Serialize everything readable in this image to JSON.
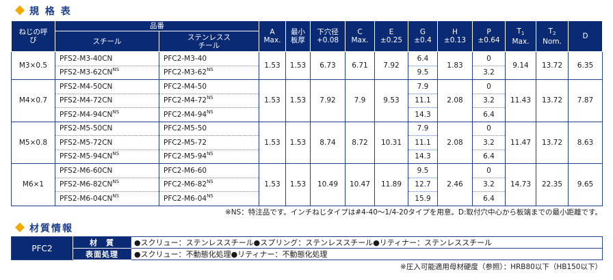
{
  "spec_title": "規 格 表",
  "headers": {
    "thread": "ねじの呼び",
    "part_number": "品番",
    "steel": "スチール",
    "stainless": "ステンレススチール",
    "a": "A",
    "a_sub": "Max.",
    "min_thickness": "最小板厚",
    "pilot_hole": "下穴径",
    "pilot_hole_tol": "+0.08",
    "c": "C",
    "c_sub": "Max.",
    "e": "E",
    "e_tol": "±0.25",
    "g": "G",
    "g_tol": "±0.4",
    "h": "H",
    "h_tol": "±0.13",
    "p": "P",
    "p_tol": "±0.64",
    "t1": "T",
    "t1_index": "1",
    "t1_sub": "Max.",
    "t2": "T",
    "t2_index": "2",
    "t2_sub": "Nom.",
    "d": "D"
  },
  "ns_mark": "NS",
  "groups": [
    {
      "thread": "M3×0.5",
      "a": "1.53",
      "min_thickness": "1.53",
      "pilot_hole": "6.73",
      "c": "6.71",
      "e": "7.92",
      "h": "1.83",
      "t1": "9.14",
      "t2": "13.72",
      "d": "6.35",
      "rows": [
        {
          "steel": "PFS2-M3-40CN",
          "steel_ns": false,
          "stainless": "PFC2-M3-40",
          "stainless_ns": false,
          "g": "6.4",
          "p": "0"
        },
        {
          "steel": "PFS2-M3-62CN",
          "steel_ns": true,
          "stainless": "PFC2-M3-62",
          "stainless_ns": true,
          "g": "9.5",
          "p": "3.2"
        }
      ]
    },
    {
      "thread": "M4×0.7",
      "a": "1.53",
      "min_thickness": "1.53",
      "pilot_hole": "7.92",
      "c": "7.9",
      "e": "9.53",
      "h": "2.08",
      "t1": "11.43",
      "t2": "13.72",
      "d": "7.87",
      "rows": [
        {
          "steel": "PFS2-M4-50CN",
          "steel_ns": false,
          "stainless": "PFC2-M4-50",
          "stainless_ns": false,
          "g": "7.9",
          "p": "0"
        },
        {
          "steel": "PFS2-M4-72CN",
          "steel_ns": false,
          "stainless": "PFC2-M4-72",
          "stainless_ns": true,
          "g": "11.1",
          "p": "3.2"
        },
        {
          "steel": "PFS2-M4-94CN",
          "steel_ns": true,
          "stainless": "PFC2-M4-94",
          "stainless_ns": true,
          "g": "14.3",
          "p": "6.4"
        }
      ]
    },
    {
      "thread": "M5×0.8",
      "a": "1.53",
      "min_thickness": "1.53",
      "pilot_hole": "8.74",
      "c": "8.72",
      "e": "10.31",
      "h": "2.08",
      "t1": "11.47",
      "t2": "13.72",
      "d": "8.63",
      "rows": [
        {
          "steel": "PFS2-M5-50CN",
          "steel_ns": false,
          "stainless": "PFC2-M5-50",
          "stainless_ns": false,
          "g": "7.9",
          "p": "0"
        },
        {
          "steel": "PFS2-M5-72CN",
          "steel_ns": false,
          "stainless": "PFC2-M5-72",
          "stainless_ns": false,
          "g": "11.1",
          "p": "3.2"
        },
        {
          "steel": "PFS2-M5-94CN",
          "steel_ns": true,
          "stainless": "PFC2-M5-94",
          "stainless_ns": true,
          "g": "14.3",
          "p": "6.4"
        }
      ]
    },
    {
      "thread": "M6×1",
      "a": "1.53",
      "min_thickness": "1.53",
      "pilot_hole": "10.49",
      "c": "10.47",
      "e": "11.89",
      "h": "2.46",
      "t1": "14.73",
      "t2": "22.35",
      "d": "9.65",
      "rows": [
        {
          "steel": "PFS2-M6-60CN",
          "steel_ns": false,
          "stainless": "PFC2-M6-60",
          "stainless_ns": false,
          "g": "9.5",
          "p": "0"
        },
        {
          "steel": "PFS2-M6-82CN",
          "steel_ns": true,
          "stainless": "PFC2-M6-82",
          "stainless_ns": true,
          "g": "12.7",
          "p": "3.2"
        },
        {
          "steel": "PFS2-M6-04CN",
          "steel_ns": true,
          "stainless": "PFC2-M6-04",
          "stainless_ns": true,
          "g": "15.9",
          "p": "6.4"
        }
      ]
    }
  ],
  "footnote": "※NS：特注品です。インチねじタイプは#4-40～1/4-20タイプを用意。D:取付穴中心から板端までの最小距離です。",
  "material_title": "材質情報",
  "material": {
    "product": "PFC2",
    "rows": [
      {
        "label": "材　質",
        "value": "●スクリュー：ステンレススチール●スプリング：ステンレススチール●リティナー：ステンレススチール"
      },
      {
        "label": "表面処理",
        "value": "●スクリュー：不動態化処理●リティナー：不動態化処理"
      }
    ]
  },
  "hardness_note": "※圧入可能適用母材硬度（参照）：HRB80以下（HB150以下）",
  "colors": {
    "header_bg": "#0a2a73",
    "title_text": "#1f3f8a",
    "diamond": "#f2a900"
  }
}
